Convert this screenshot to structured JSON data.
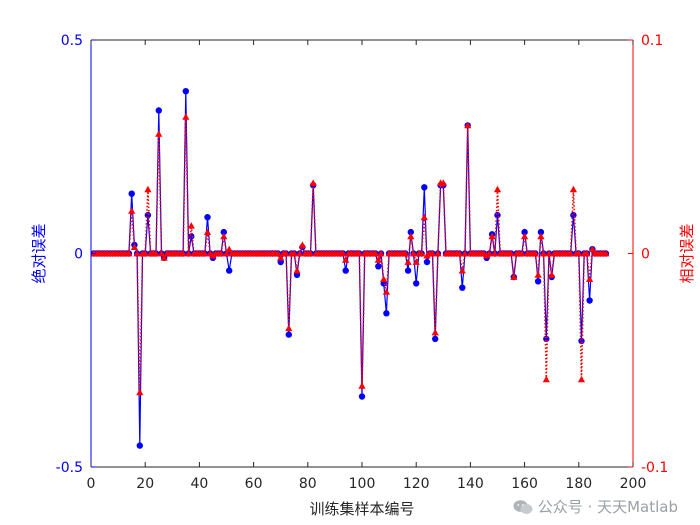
{
  "chart_data": {
    "type": "line",
    "xlabel": "训练集样本编号",
    "ylabel_left": "绝对误差",
    "ylabel_right": "相对误差",
    "xlim": [
      0,
      200
    ],
    "ylim_left": [
      -0.5,
      0.5
    ],
    "ylim_right": [
      -0.1,
      0.1
    ],
    "x_ticks": [
      0,
      20,
      40,
      60,
      80,
      100,
      120,
      140,
      160,
      180,
      200
    ],
    "y_left_ticks": [
      -0.5,
      0,
      0.5
    ],
    "y_right_ticks": [
      -0.1,
      0,
      0.1
    ],
    "colors": {
      "left": "#0000ff",
      "right": "#ff0000"
    },
    "n_points": 190,
    "series": [
      {
        "axis": "left",
        "marker": "circle",
        "style": "solid",
        "spikes": [
          [
            15,
            0.14
          ],
          [
            16,
            0.02
          ],
          [
            18,
            -0.45
          ],
          [
            21,
            0.09
          ],
          [
            25,
            0.335
          ],
          [
            27,
            -0.01
          ],
          [
            35,
            0.38
          ],
          [
            37,
            0.04
          ],
          [
            43,
            0.085
          ],
          [
            45,
            -0.01
          ],
          [
            49,
            0.05
          ],
          [
            51,
            -0.04
          ],
          [
            70,
            -0.02
          ],
          [
            73,
            -0.19
          ],
          [
            76,
            -0.05
          ],
          [
            78,
            0.015
          ],
          [
            82,
            0.16
          ],
          [
            94,
            -0.04
          ],
          [
            100,
            -0.335
          ],
          [
            106,
            -0.03
          ],
          [
            108,
            -0.07
          ],
          [
            109,
            -0.14
          ],
          [
            117,
            -0.04
          ],
          [
            118,
            0.05
          ],
          [
            120,
            -0.07
          ],
          [
            123,
            0.155
          ],
          [
            124,
            -0.02
          ],
          [
            127,
            -0.2
          ],
          [
            129,
            0.16
          ],
          [
            130,
            0.16
          ],
          [
            137,
            -0.08
          ],
          [
            139,
            0.3
          ],
          [
            146,
            -0.01
          ],
          [
            148,
            0.045
          ],
          [
            150,
            0.09
          ],
          [
            156,
            -0.055
          ],
          [
            160,
            0.05
          ],
          [
            165,
            -0.065
          ],
          [
            166,
            0.05
          ],
          [
            168,
            -0.2
          ],
          [
            170,
            -0.055
          ],
          [
            178,
            0.09
          ],
          [
            181,
            -0.205
          ],
          [
            184,
            -0.11
          ],
          [
            185,
            0.01
          ],
          [
            188,
            0.0
          ]
        ]
      },
      {
        "axis": "right",
        "marker": "triangle",
        "style": "dotted",
        "spikes": [
          [
            15,
            0.02
          ],
          [
            16,
            0.003
          ],
          [
            18,
            -0.065
          ],
          [
            21,
            0.03
          ],
          [
            25,
            0.056
          ],
          [
            27,
            -0.002
          ],
          [
            35,
            0.064
          ],
          [
            37,
            0.013
          ],
          [
            43,
            0.01
          ],
          [
            45,
            -0.001
          ],
          [
            49,
            0.008
          ],
          [
            51,
            0.002
          ],
          [
            70,
            -0.002
          ],
          [
            73,
            -0.035
          ],
          [
            76,
            -0.008
          ],
          [
            78,
            0.004
          ],
          [
            82,
            0.033
          ],
          [
            94,
            -0.003
          ],
          [
            100,
            -0.062
          ],
          [
            106,
            -0.003
          ],
          [
            108,
            -0.012
          ],
          [
            109,
            -0.018
          ],
          [
            117,
            -0.004
          ],
          [
            118,
            0.008
          ],
          [
            120,
            -0.004
          ],
          [
            123,
            0.017
          ],
          [
            124,
            -0.001
          ],
          [
            127,
            -0.037
          ],
          [
            129,
            0.033
          ],
          [
            130,
            0.033
          ],
          [
            137,
            -0.008
          ],
          [
            139,
            0.06
          ],
          [
            146,
            -0.001
          ],
          [
            148,
            0.008
          ],
          [
            150,
            0.03
          ],
          [
            156,
            -0.011
          ],
          [
            160,
            0.008
          ],
          [
            165,
            -0.01
          ],
          [
            166,
            0.008
          ],
          [
            168,
            -0.059
          ],
          [
            170,
            -0.01
          ],
          [
            178,
            0.03
          ],
          [
            181,
            -0.059
          ],
          [
            184,
            -0.012
          ],
          [
            185,
            0.002
          ],
          [
            188,
            0.0
          ]
        ]
      }
    ]
  },
  "watermark": {
    "text": "公众号 · 天天Matlab",
    "icon": "wechat-icon"
  }
}
